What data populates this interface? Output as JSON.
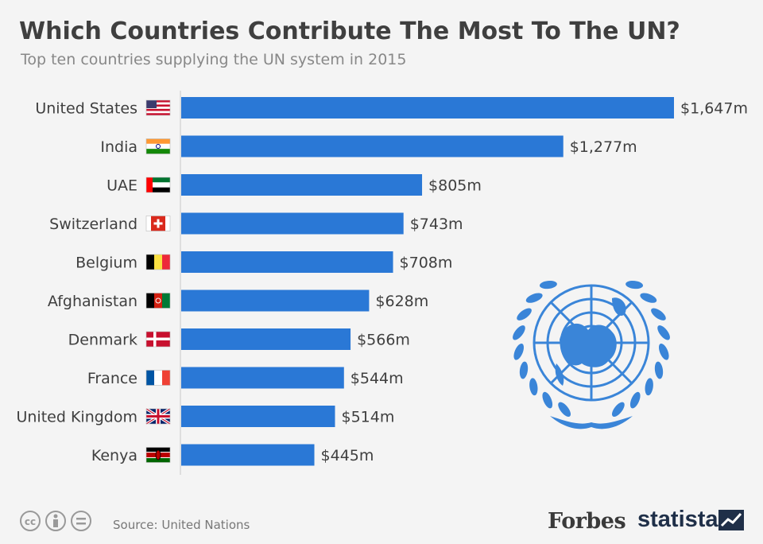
{
  "title": "Which Countries Contribute The Most To The UN?",
  "subtitle": "Top ten countries supplying the UN system in 2015",
  "source": "Source: United Nations",
  "brands": {
    "forbes": "Forbes",
    "statista": "statista"
  },
  "colors": {
    "bar": "#2a78d6",
    "emblem": "#3a85d8",
    "text": "#3f3f3f"
  },
  "icons": [
    "cc-icon",
    "attribution-icon",
    "no-derivatives-icon",
    "un-emblem-icon",
    "statista-logo-icon"
  ],
  "chart_data": {
    "type": "bar",
    "orientation": "horizontal",
    "categories": [
      "United States",
      "India",
      "UAE",
      "Switzerland",
      "Belgium",
      "Afghanistan",
      "Denmark",
      "France",
      "United Kingdom",
      "Kenya"
    ],
    "values": [
      1647,
      1277,
      805,
      743,
      708,
      628,
      566,
      544,
      514,
      445
    ],
    "value_labels": [
      "$1,647m",
      "$1,277m",
      "$805m",
      "$743m",
      "$708m",
      "$628m",
      "$566m",
      "$544m",
      "$514m",
      "$445m"
    ],
    "flags": [
      "us",
      "in",
      "ae",
      "ch",
      "be",
      "af",
      "dk",
      "fr",
      "gb",
      "ke"
    ],
    "xlim": [
      0,
      1647
    ],
    "grid": false,
    "legend": "none"
  }
}
